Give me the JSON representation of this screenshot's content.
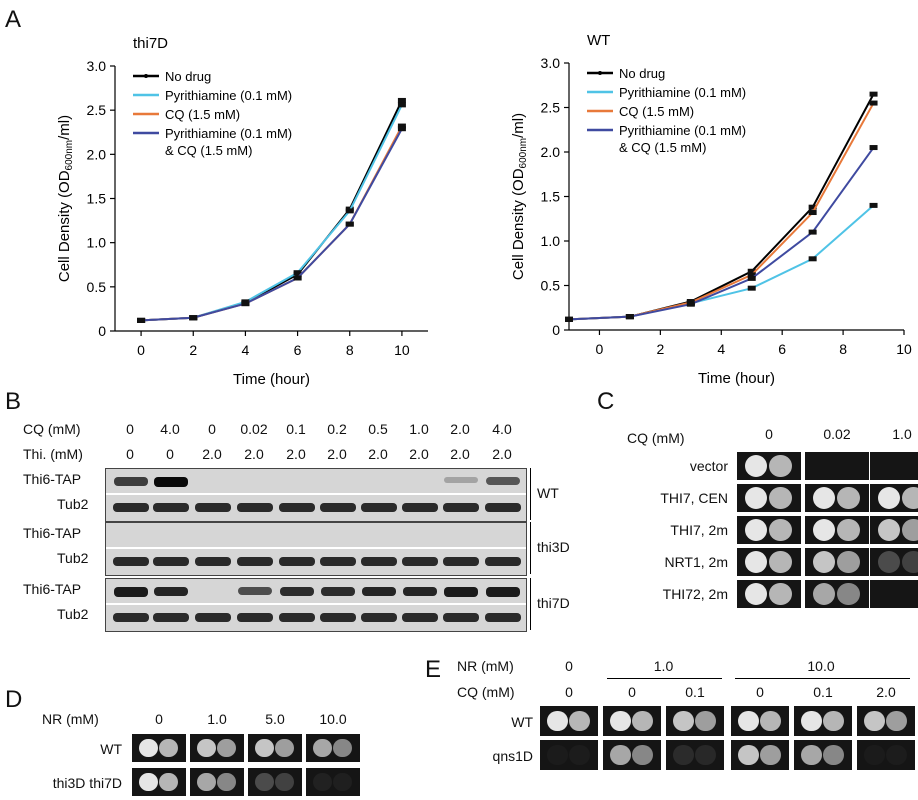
{
  "panels": {
    "A": "A",
    "B": "B",
    "C": "C",
    "D": "D",
    "E": "E"
  },
  "chart_data": [
    {
      "type": "line",
      "title": "thi7D",
      "xlabel": "Time (hour)",
      "ylabel": "Cell Density (OD600nm/ml)",
      "ylabel_main": "Cell Density (OD",
      "ylabel_sub": "600nm",
      "ylabel_end": "/ml)",
      "xlim": [
        -1,
        11
      ],
      "ylim": [
        0,
        3
      ],
      "xticks": [
        0,
        2,
        4,
        6,
        8,
        10
      ],
      "yticks": [
        "0",
        "0.5",
        "1.0",
        "1.5",
        "2.0",
        "2.5",
        "3.0"
      ],
      "x": [
        0,
        2,
        4,
        6,
        8,
        10
      ],
      "legend_position": "top-left",
      "series": [
        {
          "name": "No drug",
          "color": "#000000",
          "values": [
            0.12,
            0.15,
            0.32,
            0.64,
            1.38,
            2.61
          ]
        },
        {
          "name": "Pyrithiamine (0.1 mM)",
          "color": "#4fc3e6",
          "values": [
            0.12,
            0.15,
            0.33,
            0.66,
            1.36,
            2.56
          ]
        },
        {
          "name": "CQ (1.5 mM)",
          "color": "#e8793a",
          "values": [
            0.12,
            0.15,
            0.31,
            0.6,
            1.21,
            2.32
          ]
        },
        {
          "name": "Pyrithiamine (0.1 mM)",
          "name2": "& CQ (1.5 mM)",
          "color": "#3f4aa0",
          "values": [
            0.12,
            0.15,
            0.31,
            0.6,
            1.21,
            2.29
          ]
        }
      ]
    },
    {
      "type": "line",
      "title": "WT",
      "xlabel": "Time (hour)",
      "ylabel": "Cell Density (OD600nm/ml)",
      "ylabel_main": "Cell Density (OD",
      "ylabel_sub": "600nm",
      "ylabel_end": "/ml)",
      "xlim": [
        -1,
        10
      ],
      "ylim": [
        0,
        3
      ],
      "xticks": [
        0,
        2,
        4,
        6,
        8,
        10
      ],
      "yticks": [
        "0",
        "0.5",
        "1.0",
        "1.5",
        "2.0",
        "2.5",
        "3.0"
      ],
      "x": [
        -1,
        1,
        3,
        5,
        7,
        9
      ],
      "legend_position": "top-left",
      "series": [
        {
          "name": "No drug",
          "color": "#000000",
          "values": [
            0.12,
            0.15,
            0.32,
            0.66,
            1.38,
            2.65
          ]
        },
        {
          "name": "Pyrithiamine (0.1 mM)",
          "color": "#4fc3e6",
          "values": [
            0.12,
            0.15,
            0.3,
            0.47,
            0.8,
            1.4
          ]
        },
        {
          "name": "CQ (1.5 mM)",
          "color": "#e8793a",
          "values": [
            0.12,
            0.15,
            0.31,
            0.62,
            1.32,
            2.55
          ]
        },
        {
          "name": "Pyrithiamine (0.1 mM)",
          "name2": "& CQ (1.5 mM)",
          "color": "#3f4aa0",
          "values": [
            0.12,
            0.15,
            0.29,
            0.58,
            1.1,
            2.05
          ]
        }
      ]
    }
  ],
  "panelB": {
    "cq_label": "CQ (mM)",
    "thi_label": "Thi. (mM)",
    "cq_values": [
      "0",
      "4.0",
      "0",
      "0.02",
      "0.1",
      "0.2",
      "0.5",
      "1.0",
      "2.0",
      "4.0"
    ],
    "thi_values": [
      "0",
      "0",
      "2.0",
      "2.0",
      "2.0",
      "2.0",
      "2.0",
      "2.0",
      "2.0",
      "2.0"
    ],
    "strains": [
      {
        "name": "WT",
        "tap_label": "Thi6-TAP",
        "tub_label": "Tub2",
        "tap_intensity": [
          0.7,
          1.0,
          0,
          0,
          0,
          0,
          0,
          0,
          0.1,
          0.55
        ]
      },
      {
        "name": "thi3D",
        "tap_label": "Thi6-TAP",
        "tub_label": "Tub2",
        "tap_intensity": [
          0,
          0,
          0,
          0,
          0,
          0,
          0,
          0,
          0,
          0
        ]
      },
      {
        "name": "thi7D",
        "tap_label": "Thi6-TAP",
        "tub_label": "Tub2",
        "tap_intensity": [
          0.9,
          0.85,
          0,
          0.6,
          0.8,
          0.8,
          0.85,
          0.85,
          0.9,
          0.9
        ]
      }
    ]
  },
  "panelC": {
    "cq_label": "CQ (mM)",
    "conditions": [
      "0",
      "0.02",
      "1.0"
    ],
    "rows": [
      {
        "label": "vector",
        "growth": [
          1,
          0,
          0
        ]
      },
      {
        "label": "THI7, CEN",
        "growth": [
          1,
          1,
          1
        ]
      },
      {
        "label": "THI7, 2m",
        "growth": [
          1,
          1,
          0.9
        ]
      },
      {
        "label": "NRT1, 2m",
        "growth": [
          1,
          0.9,
          0.4
        ]
      },
      {
        "label": "THI72, 2m",
        "growth": [
          1,
          0.8,
          0
        ]
      }
    ]
  },
  "panelD": {
    "nr_label": "NR (mM)",
    "conditions": [
      "0",
      "1.0",
      "5.0",
      "10.0"
    ],
    "rows": [
      {
        "label": "WT",
        "growth": [
          1,
          0.9,
          0.9,
          0.8
        ]
      },
      {
        "label": "thi3D thi7D",
        "growth": [
          1,
          0.8,
          0.4,
          0.1
        ]
      }
    ]
  },
  "panelE": {
    "nr_label": "NR (mM)",
    "cq_label": "CQ (mM)",
    "nr_values": [
      "0",
      "1.0",
      "10.0"
    ],
    "cq_values": [
      "0",
      "0",
      "0.1",
      "0",
      "0.1",
      "2.0"
    ],
    "rows": [
      {
        "label": "WT",
        "growth": [
          1,
          1,
          0.9,
          1,
          1,
          0.9
        ]
      },
      {
        "label": "qns1D",
        "growth": [
          0.05,
          0.8,
          0.2,
          0.9,
          0.8,
          0.05
        ]
      }
    ]
  }
}
